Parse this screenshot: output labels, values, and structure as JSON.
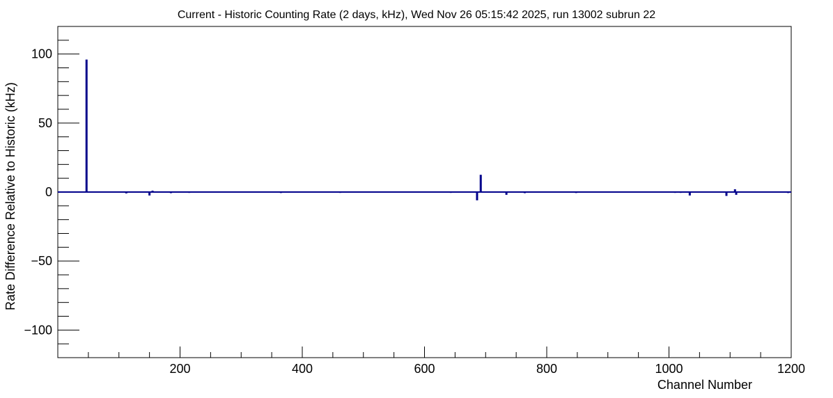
{
  "chart_data": {
    "type": "bar",
    "title": "Current - Historic Counting Rate (2 days, kHz), Wed Nov 26 05:15:42 2025, run 13002 subrun 22",
    "xlabel": "Channel Number",
    "ylabel": "Rate Difference Relative to Historic (kHz)",
    "xlim": [
      0,
      1200
    ],
    "ylim": [
      -120,
      120
    ],
    "x_ticks": [
      200,
      400,
      600,
      800,
      1000,
      1200
    ],
    "x_tick_labels": [
      "200",
      "400",
      "600",
      "800",
      "1000",
      "1200"
    ],
    "y_ticks": [
      -100,
      -50,
      0,
      50,
      100
    ],
    "y_tick_labels": [
      "−100",
      "−50",
      "0",
      "50",
      "100"
    ],
    "grid": false,
    "series_color": "#00008b",
    "points": [
      {
        "x": 47,
        "y": 96
      },
      {
        "x": 112,
        "y": -1
      },
      {
        "x": 150,
        "y": -2.5
      },
      {
        "x": 155,
        "y": 1
      },
      {
        "x": 185,
        "y": -0.8
      },
      {
        "x": 215,
        "y": -0.6
      },
      {
        "x": 365,
        "y": -0.7
      },
      {
        "x": 462,
        "y": -0.6
      },
      {
        "x": 550,
        "y": -0.5
      },
      {
        "x": 643,
        "y": -0.6
      },
      {
        "x": 686,
        "y": -6
      },
      {
        "x": 692,
        "y": 12.5
      },
      {
        "x": 734,
        "y": -2
      },
      {
        "x": 764,
        "y": -0.8
      },
      {
        "x": 848,
        "y": -0.7
      },
      {
        "x": 1010,
        "y": -0.6
      },
      {
        "x": 1019,
        "y": -0.6
      },
      {
        "x": 1034,
        "y": -2.5
      },
      {
        "x": 1094,
        "y": -2.8
      },
      {
        "x": 1108,
        "y": 2
      },
      {
        "x": 1110,
        "y": -2
      },
      {
        "x": 1195,
        "y": -0.7
      }
    ]
  }
}
